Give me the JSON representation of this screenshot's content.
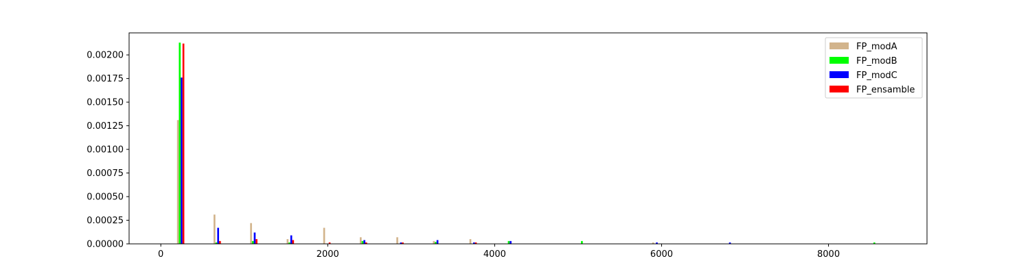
{
  "chart_data": {
    "type": "bar",
    "title": "",
    "xlabel": "",
    "ylabel": "",
    "xlim": [
      -380,
      9180
    ],
    "ylim": [
      0,
      0.002233
    ],
    "xticks": [
      0,
      2000,
      4000,
      6000,
      8000
    ],
    "xtick_labels": [
      "0",
      "2000",
      "4000",
      "6000",
      "8000"
    ],
    "yticks": [
      0,
      0.00025,
      0.0005,
      0.00075,
      0.001,
      0.00125,
      0.0015,
      0.00175,
      0.002
    ],
    "ytick_labels": [
      "0.00000",
      "0.00025",
      "0.00050",
      "0.00075",
      "0.00100",
      "0.00125",
      "0.00150",
      "0.00175",
      "0.00200"
    ],
    "bin_width": 87.7,
    "legend_position": "top-right",
    "grid": false,
    "bin_centers": [
      238,
      676,
      1114,
      1552,
      1990,
      2428,
      2866,
      3304,
      3742,
      4180,
      4618,
      5056,
      5494,
      5932,
      6370,
      6808,
      7246,
      7684,
      8122,
      8560
    ],
    "series": [
      {
        "name": "FP_modA",
        "color": "#d2b48c",
        "values": [
          0.00131,
          0.00031,
          0.00022,
          5e-05,
          0.00017,
          7e-05,
          7e-05,
          3e-05,
          5e-05,
          0,
          0,
          0,
          0,
          1.5e-05,
          0,
          0,
          0,
          0,
          0,
          0
        ]
      },
      {
        "name": "FP_modB",
        "color": "#00ff00",
        "values": [
          0.00213,
          1.5e-05,
          3e-05,
          1.5e-05,
          0,
          3e-05,
          0,
          2e-05,
          0,
          3e-05,
          0,
          3e-05,
          0,
          0,
          0,
          0,
          0,
          0,
          0,
          1.5e-05
        ]
      },
      {
        "name": "FP_modC",
        "color": "#0000ff",
        "values": [
          0.00176,
          0.00017,
          0.00012,
          9e-05,
          0,
          4e-05,
          1.5e-05,
          4e-05,
          1.5e-05,
          3e-05,
          0,
          0,
          0,
          1.5e-05,
          0,
          1.5e-05,
          0,
          0,
          0,
          0
        ]
      },
      {
        "name": "FP_ensamble",
        "color": "#ff0000",
        "values": [
          0.00212,
          3e-05,
          5e-05,
          4e-05,
          1.5e-05,
          1.5e-05,
          1.5e-05,
          0,
          1.5e-05,
          0,
          0,
          0,
          0,
          0,
          0,
          0,
          0,
          0,
          0,
          0
        ]
      }
    ]
  }
}
